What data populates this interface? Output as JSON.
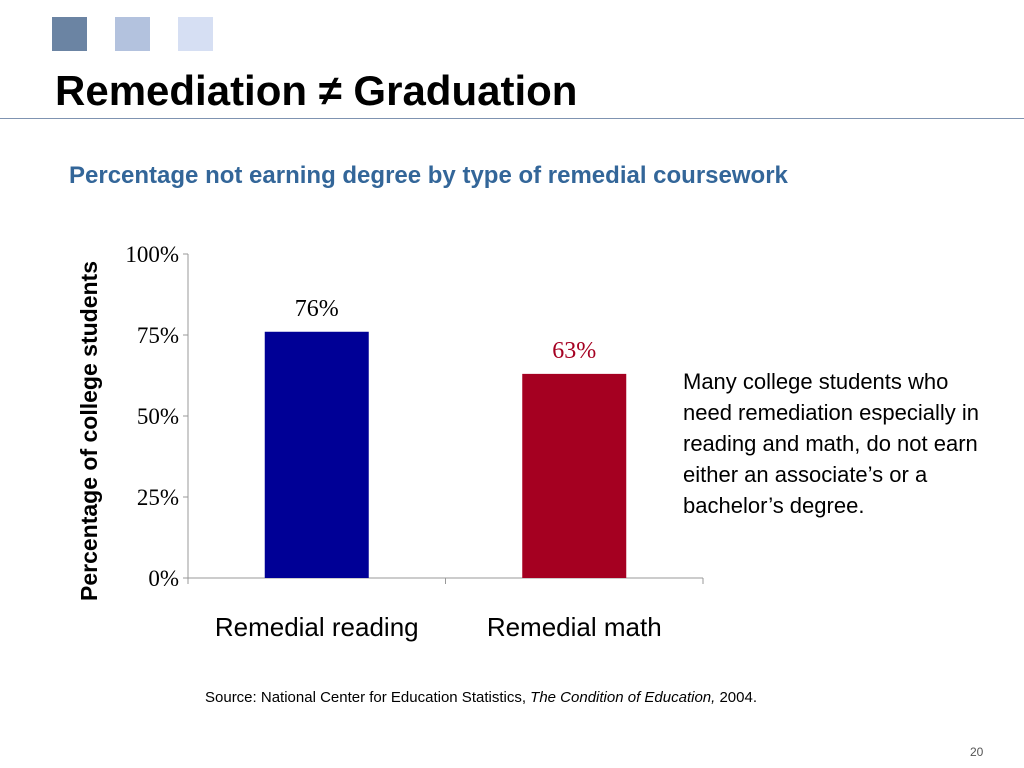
{
  "slide": {
    "title": "Remediation ≠ Graduation",
    "subtitle": "Percentage not earning degree by type of remedial coursework",
    "decor_colors": [
      "#6b84a3",
      "#b3c2de",
      "#d6dff3"
    ],
    "rule_color": "#7f93b1"
  },
  "chart_data": {
    "type": "bar",
    "categories": [
      "Remedial reading",
      "Remedial math"
    ],
    "values": [
      76,
      63
    ],
    "value_labels": [
      "76%",
      "63%"
    ],
    "bar_colors": [
      "#000096",
      "#a50021"
    ],
    "label_colors": [
      "#000000",
      "#a50021"
    ],
    "ylabel": "Percentage of college students",
    "xlabel": "",
    "ylim": [
      0,
      100
    ],
    "yticks": [
      0,
      25,
      50,
      75,
      100
    ],
    "ytick_labels": [
      "0%",
      "25%",
      "50%",
      "75%",
      "100%"
    ],
    "grid": false
  },
  "note": "Many college students who need remediation especially in reading and math, do not earn either an associate’s or a bachelor’s degree.",
  "source": {
    "prefix": "Source: National Center for Education Statistics, ",
    "title": "The Condition of Education,",
    "suffix": " 2004."
  },
  "page_number": "20"
}
